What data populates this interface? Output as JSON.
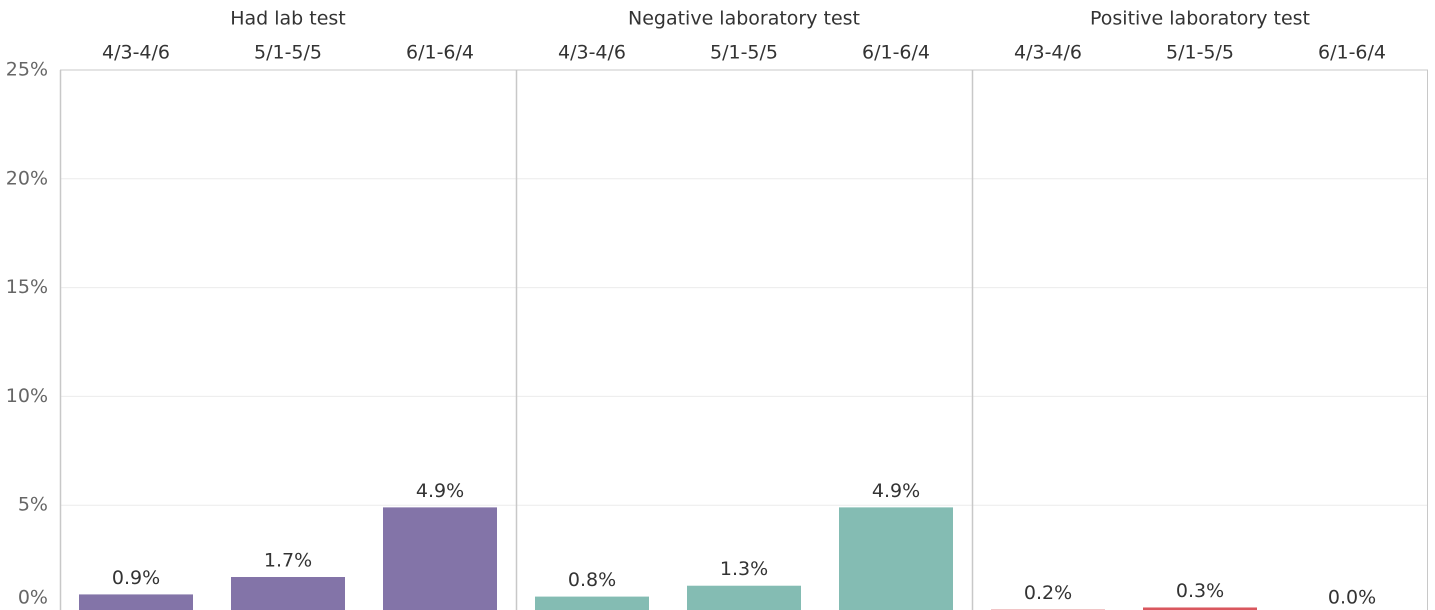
{
  "chart_data": [
    {
      "type": "bar",
      "title": "Had lab test",
      "categories": [
        "4/3-4/6",
        "5/1-5/5",
        "6/1-6/4"
      ],
      "values": [
        0.9,
        1.7,
        4.9
      ],
      "value_labels": [
        "0.9%",
        "1.7%",
        "4.9%"
      ],
      "color": "#8374a8",
      "ylim": [
        0,
        25
      ],
      "yticks": [
        {
          "value": 0,
          "label": "0%"
        },
        {
          "value": 5,
          "label": "5%"
        },
        {
          "value": 10,
          "label": "10%"
        },
        {
          "value": 15,
          "label": "15%"
        },
        {
          "value": 20,
          "label": "20%"
        },
        {
          "value": 25,
          "label": "25%"
        }
      ],
      "grid": true
    },
    {
      "type": "bar",
      "title": "Negative laboratory test",
      "categories": [
        "4/3-4/6",
        "5/1-5/5",
        "6/1-6/4"
      ],
      "values": [
        0.8,
        1.3,
        4.9
      ],
      "value_labels": [
        "0.8%",
        "1.3%",
        "4.9%"
      ],
      "color": "#84bcb3",
      "ylim": [
        0,
        25
      ]
    },
    {
      "type": "bar",
      "title": "Positive laboratory test",
      "categories": [
        "4/3-4/6",
        "5/1-5/5",
        "6/1-6/4"
      ],
      "values": [
        0.2,
        0.3,
        0.0
      ],
      "value_labels": [
        "0.2%",
        "0.3%",
        "0.0%"
      ],
      "color": "#d9575e",
      "ylim": [
        0,
        25
      ]
    }
  ]
}
